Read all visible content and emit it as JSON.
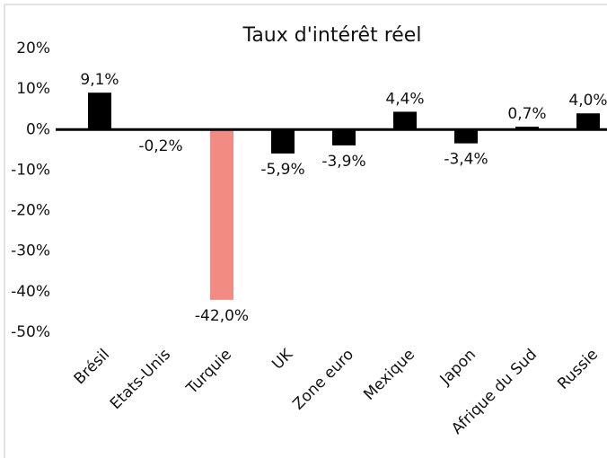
{
  "chart_data": {
    "type": "bar",
    "title": "Taux d'intérêt réel",
    "categories": [
      "Brésil",
      "Etats-Unis",
      "Turquie",
      "UK",
      "Zone euro",
      "Mexique",
      "Japon",
      "Afrique du Sud",
      "Russie"
    ],
    "values": [
      9.1,
      -0.2,
      -42.0,
      -5.9,
      -3.9,
      4.4,
      -3.4,
      0.7,
      4.0
    ],
    "value_labels": [
      "9,1%",
      "-0,2%",
      "-42,0%",
      "-5,9%",
      "-3,9%",
      "4,4%",
      "-3,4%",
      "0,7%",
      "4,0%"
    ],
    "colors": [
      "#000000",
      "#000000",
      "#f28b82",
      "#000000",
      "#000000",
      "#000000",
      "#000000",
      "#000000",
      "#000000"
    ],
    "ylim": [
      -50,
      20
    ],
    "yticks": [
      {
        "value": 20,
        "label": "20%"
      },
      {
        "value": 10,
        "label": "10%"
      },
      {
        "value": 0,
        "label": "0%"
      },
      {
        "value": -10,
        "label": "-10%"
      },
      {
        "value": -20,
        "label": "-20%"
      },
      {
        "value": -30,
        "label": "-30%"
      },
      {
        "value": -40,
        "label": "-40%"
      },
      {
        "value": -50,
        "label": "-50%"
      }
    ],
    "grid": false
  }
}
